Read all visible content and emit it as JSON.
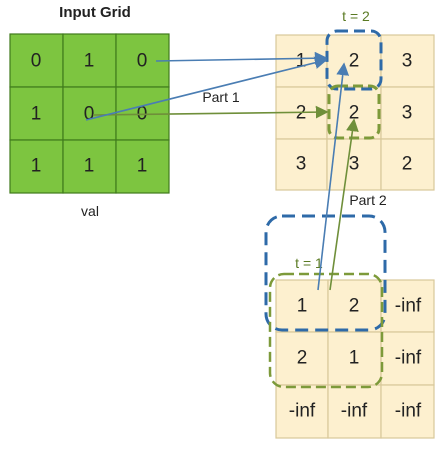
{
  "input_grid": {
    "title": "Input Grid",
    "caption": "val",
    "rows": [
      [
        "0",
        "1",
        "0"
      ],
      [
        "1",
        "0",
        "0"
      ],
      [
        "1",
        "1",
        "1"
      ]
    ]
  },
  "grid_t2": {
    "label": "t = 2",
    "rows": [
      [
        "1",
        "2",
        "3"
      ],
      [
        "2",
        "2",
        "3"
      ],
      [
        "3",
        "3",
        "2"
      ]
    ]
  },
  "grid_t1": {
    "label": "t = 1",
    "rows": [
      [
        "1",
        "2",
        "-inf"
      ],
      [
        "2",
        "1",
        "-inf"
      ],
      [
        "-inf",
        "-inf",
        "-inf"
      ]
    ]
  },
  "annotations": {
    "part1": "Part 1",
    "part2": "Part 2"
  },
  "colors": {
    "input_cell": "#7dc540",
    "output_cell": "#fdf0cf",
    "blue_arrow": "#4a7db3",
    "green_arrow": "#6f8f3a",
    "blue_highlight": "#2e6aa8",
    "green_highlight": "#7d9a3a"
  }
}
